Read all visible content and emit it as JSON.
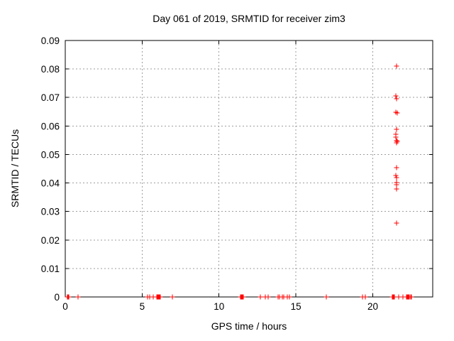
{
  "chart_data": {
    "type": "scatter",
    "title": "Day 061 of 2019, SRMTID for receiver zim3",
    "xlabel": "GPS time / hours",
    "ylabel": "SRMTID / TECUs",
    "xlim": [
      0,
      23.9
    ],
    "ylim": [
      0,
      0.09
    ],
    "xticks": {
      "values": [
        0,
        5,
        10,
        15,
        20
      ],
      "labels": [
        "0",
        "5",
        "10",
        "15",
        "20"
      ]
    },
    "yticks": {
      "values": [
        0,
        0.01,
        0.02,
        0.03,
        0.04,
        0.05,
        0.06,
        0.07,
        0.08,
        0.09
      ],
      "labels": [
        "0",
        "0.01",
        "0.02",
        "0.03",
        "0.04",
        "0.05",
        "0.06",
        "0.07",
        "0.08",
        "0.09"
      ]
    },
    "grid": "dashed gray at every major tick",
    "legend_position": "none",
    "marker": {
      "shape": "plus",
      "color": "#ff0000"
    },
    "colors": {
      "border": "#000000",
      "grid": "#9e9e9e",
      "text": "#000000",
      "background": "#ffffff"
    },
    "series": [
      {
        "name": "SRMTID",
        "points": [
          [
            21.55,
            0.081
          ],
          [
            21.52,
            0.0706
          ],
          [
            21.54,
            0.0696
          ],
          [
            21.5,
            0.0649
          ],
          [
            21.6,
            0.0645
          ],
          [
            21.55,
            0.0588
          ],
          [
            21.52,
            0.0571
          ],
          [
            21.52,
            0.0562
          ],
          [
            21.53,
            0.0549
          ],
          [
            21.6,
            0.0547
          ],
          [
            21.56,
            0.0542
          ],
          [
            21.55,
            0.0453
          ],
          [
            21.5,
            0.0426
          ],
          [
            21.53,
            0.0418
          ],
          [
            21.55,
            0.0401
          ],
          [
            21.55,
            0.0394
          ],
          [
            21.55,
            0.0378
          ],
          [
            21.55,
            0.026
          ]
        ],
        "zero_value_singles": [
          0.85,
          5.35,
          5.5,
          5.7,
          6.95,
          12.7,
          13.0,
          13.2,
          13.85,
          13.95,
          14.1,
          14.2,
          14.45,
          14.6,
          17.0,
          19.35,
          19.5,
          21.7,
          21.95
        ],
        "zero_value_runs": [
          {
            "from": 0.14,
            "to": 0.22,
            "step": 0.02
          },
          {
            "from": 5.95,
            "to": 6.2,
            "step": 0.05
          },
          {
            "from": 11.4,
            "to": 11.6,
            "step": 0.05
          },
          {
            "from": 21.25,
            "to": 21.4,
            "step": 0.05
          },
          {
            "from": 22.2,
            "to": 22.5,
            "step": 0.05
          }
        ]
      }
    ]
  }
}
